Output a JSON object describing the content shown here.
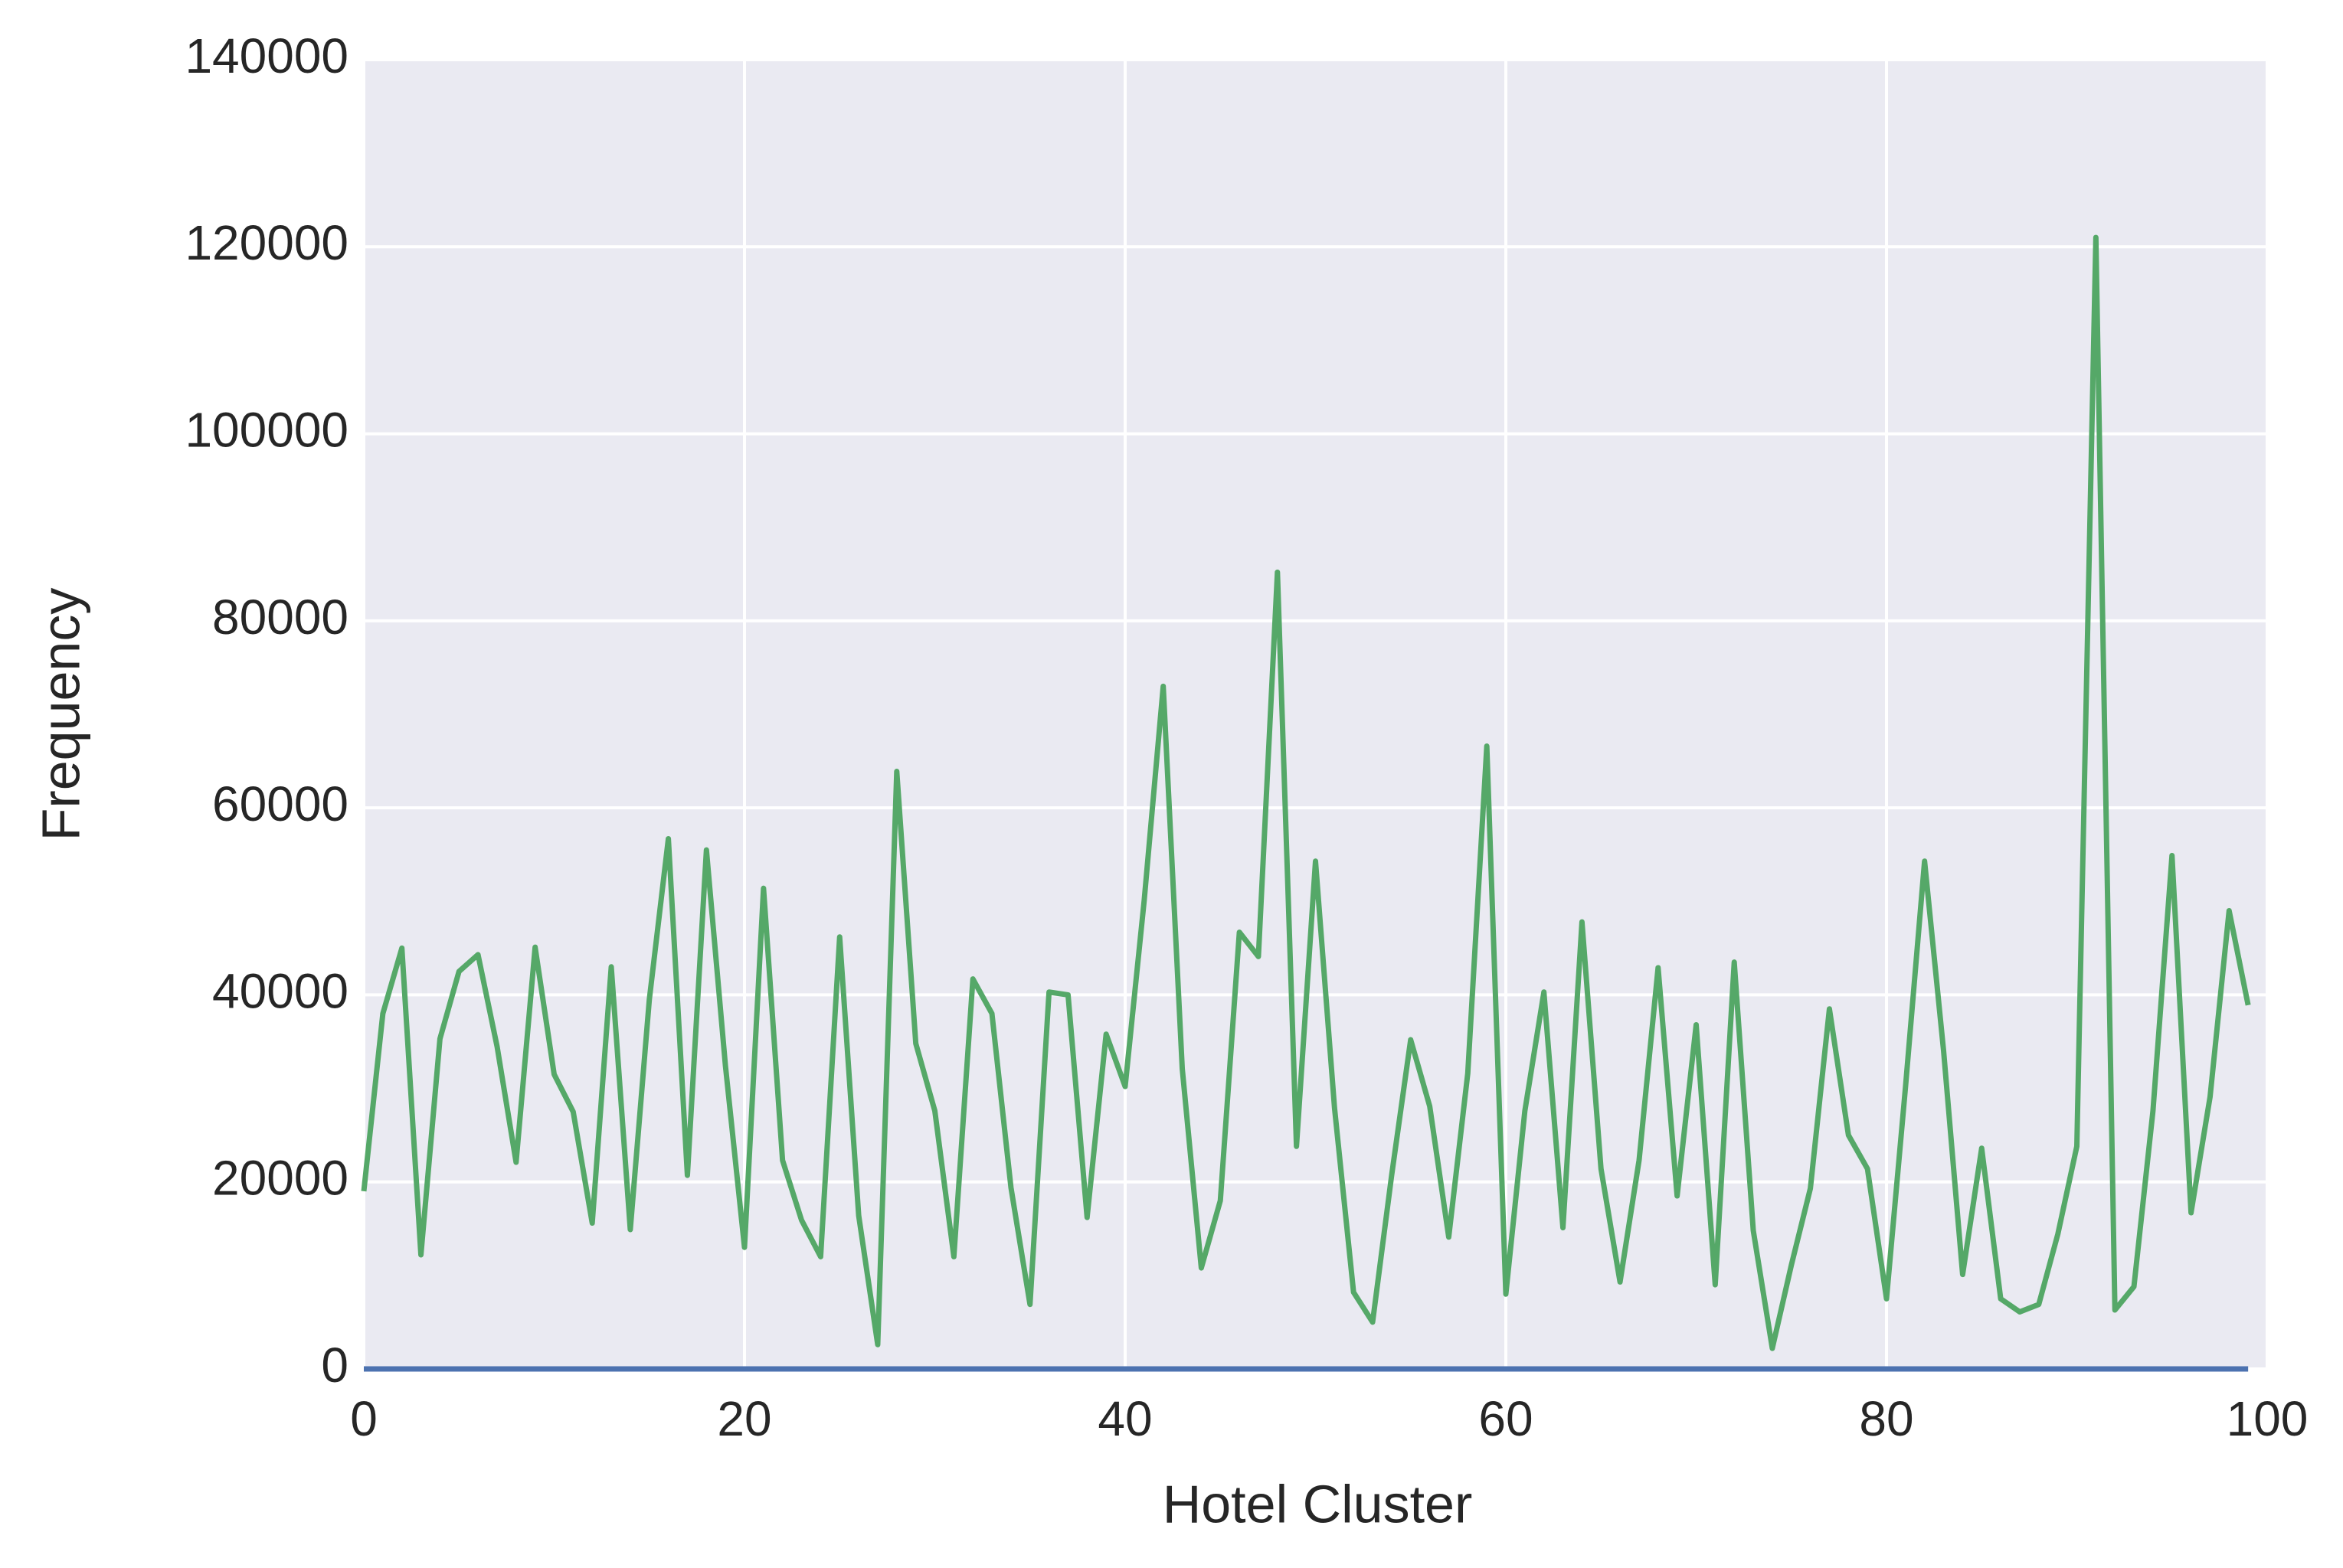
{
  "chart_data": {
    "type": "line",
    "xlabel": "Hotel Cluster",
    "ylabel": "Frequency",
    "x": [
      0,
      1,
      2,
      3,
      4,
      5,
      6,
      7,
      8,
      9,
      10,
      11,
      12,
      13,
      14,
      15,
      16,
      17,
      18,
      19,
      20,
      21,
      22,
      23,
      24,
      25,
      26,
      27,
      28,
      29,
      30,
      31,
      32,
      33,
      34,
      35,
      36,
      37,
      38,
      39,
      40,
      41,
      42,
      43,
      44,
      45,
      46,
      47,
      48,
      49,
      50,
      51,
      52,
      53,
      54,
      55,
      56,
      57,
      58,
      59,
      60,
      61,
      62,
      63,
      64,
      65,
      66,
      67,
      68,
      69,
      70,
      71,
      72,
      73,
      74,
      75,
      76,
      77,
      78,
      79,
      80,
      81,
      82,
      83,
      84,
      85,
      86,
      87,
      88,
      89,
      90,
      91,
      92,
      93,
      94,
      95,
      96,
      97,
      98,
      99
    ],
    "series": [
      {
        "color": "#4c72b0",
        "values": [
          0,
          0,
          0,
          0,
          0,
          0,
          0,
          0,
          0,
          0,
          0,
          0,
          0,
          0,
          0,
          0,
          0,
          0,
          0,
          0,
          0,
          0,
          0,
          0,
          0,
          0,
          0,
          0,
          0,
          0,
          0,
          0,
          0,
          0,
          0,
          0,
          0,
          0,
          0,
          0,
          0,
          0,
          0,
          0,
          0,
          0,
          0,
          0,
          0,
          0,
          0,
          0,
          0,
          0,
          0,
          0,
          0,
          0,
          0,
          0,
          0,
          0,
          0,
          0,
          0,
          0,
          0,
          0,
          0,
          0,
          0,
          0,
          0,
          0,
          0,
          0,
          0,
          0,
          0,
          0,
          0,
          0,
          0,
          0,
          0,
          0,
          0,
          0,
          0,
          0,
          0,
          0,
          0,
          0,
          0,
          0,
          0,
          0,
          0,
          0
        ]
      },
      {
        "color": "#55a868",
        "values": [
          19000,
          38000,
          45000,
          12200,
          35300,
          42500,
          44300,
          34500,
          22100,
          45100,
          31500,
          27500,
          15600,
          43000,
          14900,
          39500,
          56700,
          20700,
          55500,
          32400,
          13000,
          51400,
          22300,
          15900,
          12000,
          46200,
          16400,
          2600,
          63900,
          34800,
          27600,
          12000,
          41700,
          38000,
          19400,
          6900,
          40300,
          40000,
          16200,
          35800,
          30200,
          50100,
          73000,
          32100,
          10800,
          18000,
          46700,
          44100,
          85200,
          23800,
          54300,
          27900,
          8200,
          5000,
          20700,
          35200,
          28100,
          14100,
          31600,
          66600,
          8000,
          27600,
          40300,
          15100,
          47800,
          21400,
          9300,
          22300,
          42900,
          18500,
          36800,
          9000,
          43500,
          14800,
          2200,
          11100,
          19300,
          38500,
          25000,
          21400,
          7500,
          30200,
          54300,
          34000,
          10100,
          23600,
          7500,
          6100,
          6900,
          14400,
          23800,
          121000,
          6300,
          8800,
          27600,
          54900,
          16700,
          29100,
          49000,
          38900
        ]
      }
    ],
    "xlim": [
      0,
      100
    ],
    "ylim": [
      0,
      140000
    ],
    "xticks": [
      0,
      20,
      40,
      60,
      80,
      100
    ],
    "yticks": [
      0,
      20000,
      40000,
      60000,
      80000,
      100000,
      120000,
      140000
    ],
    "grid": true
  }
}
